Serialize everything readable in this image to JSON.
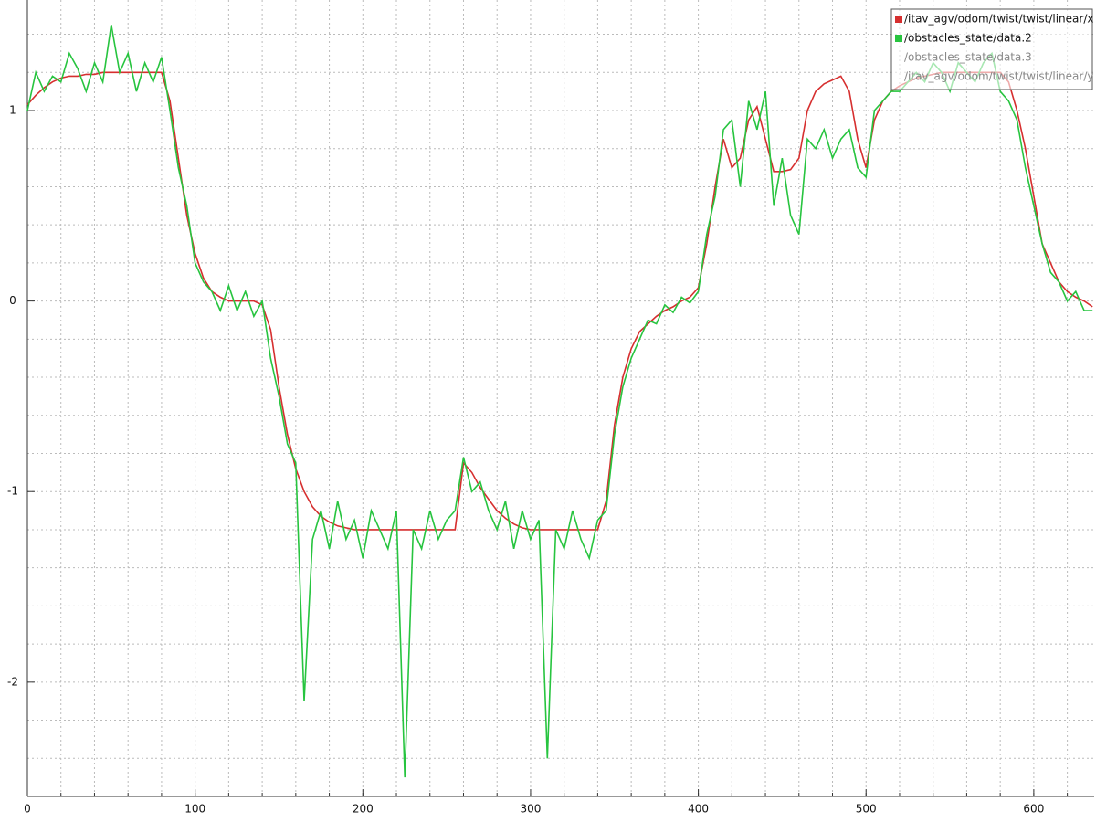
{
  "chart_data": {
    "type": "line",
    "x": [
      0,
      5,
      10,
      15,
      20,
      25,
      30,
      35,
      40,
      45,
      50,
      55,
      60,
      65,
      70,
      75,
      80,
      85,
      90,
      95,
      100,
      105,
      110,
      115,
      120,
      125,
      130,
      135,
      140,
      145,
      150,
      155,
      160,
      165,
      170,
      175,
      180,
      185,
      190,
      195,
      200,
      205,
      210,
      215,
      220,
      225,
      230,
      235,
      240,
      245,
      250,
      255,
      260,
      265,
      270,
      275,
      280,
      285,
      290,
      295,
      300,
      305,
      310,
      315,
      320,
      325,
      330,
      335,
      340,
      345,
      350,
      355,
      360,
      365,
      370,
      375,
      380,
      385,
      390,
      395,
      400,
      405,
      410,
      415,
      420,
      425,
      430,
      435,
      440,
      445,
      450,
      455,
      460,
      465,
      470,
      475,
      480,
      485,
      490,
      495,
      500,
      505,
      510,
      515,
      520,
      525,
      530,
      535,
      540,
      545,
      550,
      555,
      560,
      565,
      570,
      575,
      580,
      585,
      590,
      595,
      600,
      605,
      610,
      615,
      620,
      625,
      630,
      635
    ],
    "series": [
      {
        "name": "/itav_agv/odom/twist/twist/linear/x",
        "color": "#d62f2f",
        "values": [
          1.03,
          1.08,
          1.12,
          1.15,
          1.17,
          1.18,
          1.18,
          1.19,
          1.19,
          1.2,
          1.2,
          1.2,
          1.2,
          1.2,
          1.2,
          1.2,
          1.2,
          1.05,
          0.75,
          0.45,
          0.25,
          0.12,
          0.05,
          0.02,
          0.0,
          0.0,
          0.0,
          0.0,
          -0.02,
          -0.15,
          -0.45,
          -0.7,
          -0.88,
          -1.0,
          -1.08,
          -1.13,
          -1.16,
          -1.18,
          -1.19,
          -1.2,
          -1.2,
          -1.2,
          -1.2,
          -1.2,
          -1.2,
          -1.2,
          -1.2,
          -1.2,
          -1.2,
          -1.2,
          -1.2,
          -1.2,
          -0.85,
          -0.9,
          -0.98,
          -1.04,
          -1.1,
          -1.14,
          -1.17,
          -1.19,
          -1.2,
          -1.2,
          -1.2,
          -1.2,
          -1.2,
          -1.2,
          -1.2,
          -1.2,
          -1.2,
          -1.05,
          -0.65,
          -0.4,
          -0.25,
          -0.16,
          -0.12,
          -0.08,
          -0.05,
          -0.03,
          0.0,
          0.02,
          0.07,
          0.3,
          0.6,
          0.85,
          0.7,
          0.75,
          0.95,
          1.02,
          0.85,
          0.68,
          0.68,
          0.69,
          0.75,
          1.0,
          1.1,
          1.14,
          1.16,
          1.18,
          1.1,
          0.85,
          0.7,
          0.95,
          1.05,
          1.1,
          1.13,
          1.15,
          1.17,
          1.18,
          1.19,
          1.2,
          1.2,
          1.2,
          1.2,
          1.2,
          1.2,
          1.2,
          1.2,
          1.15,
          1.0,
          0.8,
          0.55,
          0.3,
          0.2,
          0.1,
          0.05,
          0.02,
          0.0,
          -0.03
        ]
      },
      {
        "name": "/obstacles_state/data.2",
        "color": "#27c43f",
        "values": [
          1.0,
          1.2,
          1.1,
          1.18,
          1.15,
          1.3,
          1.22,
          1.1,
          1.25,
          1.15,
          1.45,
          1.2,
          1.3,
          1.1,
          1.25,
          1.15,
          1.28,
          1.0,
          0.7,
          0.5,
          0.2,
          0.1,
          0.05,
          -0.05,
          0.08,
          -0.05,
          0.05,
          -0.08,
          0.0,
          -0.3,
          -0.5,
          -0.75,
          -0.85,
          -2.1,
          -1.25,
          -1.1,
          -1.3,
          -1.05,
          -1.25,
          -1.15,
          -1.35,
          -1.1,
          -1.2,
          -1.3,
          -1.1,
          -2.5,
          -1.2,
          -1.3,
          -1.1,
          -1.25,
          -1.15,
          -1.1,
          -0.82,
          -1.0,
          -0.95,
          -1.1,
          -1.2,
          -1.05,
          -1.3,
          -1.1,
          -1.25,
          -1.15,
          -2.4,
          -1.2,
          -1.3,
          -1.1,
          -1.25,
          -1.35,
          -1.15,
          -1.1,
          -0.7,
          -0.45,
          -0.3,
          -0.2,
          -0.1,
          -0.12,
          -0.02,
          -0.06,
          0.02,
          -0.01,
          0.05,
          0.35,
          0.55,
          0.9,
          0.95,
          0.6,
          1.05,
          0.9,
          1.1,
          0.5,
          0.75,
          0.45,
          0.35,
          0.85,
          0.8,
          0.9,
          0.75,
          0.85,
          0.9,
          0.7,
          0.65,
          1.0,
          1.05,
          1.1,
          1.1,
          1.15,
          1.2,
          1.15,
          1.25,
          1.2,
          1.1,
          1.25,
          1.2,
          1.15,
          1.25,
          1.3,
          1.1,
          1.05,
          0.95,
          0.7,
          0.5,
          0.3,
          0.15,
          0.1,
          0.0,
          0.05,
          -0.05,
          -0.05
        ]
      }
    ],
    "hidden_series": [
      "/obstacles_state/data.3",
      "/itav_agv/odom/twist/twist/linear/y"
    ],
    "xlim": [
      0,
      636
    ],
    "ylim": [
      -2.6,
      1.58
    ],
    "xticks": [
      0,
      100,
      200,
      300,
      400,
      500,
      600
    ],
    "yticks": [
      -2,
      -1,
      0,
      1
    ],
    "xgrid": [
      0,
      20,
      40,
      60,
      80,
      100,
      120,
      140,
      160,
      180,
      200,
      220,
      240,
      260,
      280,
      300,
      320,
      340,
      360,
      380,
      400,
      420,
      440,
      460,
      480,
      500,
      520,
      540,
      560,
      580,
      600,
      620
    ],
    "ygrid": [
      -2.4,
      -2.2,
      -2,
      -1.8,
      -1.6,
      -1.4,
      -1.2,
      -1,
      -0.8,
      -0.6,
      -0.4,
      -0.2,
      0,
      0.2,
      0.4,
      0.6,
      0.8,
      1,
      1.2,
      1.4
    ],
    "legend": "upper right"
  }
}
